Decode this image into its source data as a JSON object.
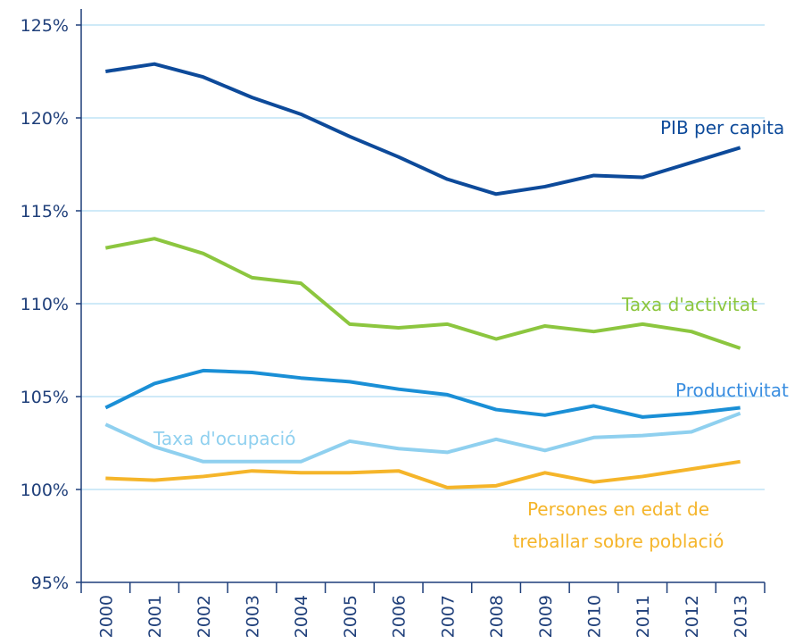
{
  "chart_data": {
    "type": "line",
    "categories": [
      "2000",
      "2001",
      "2002",
      "2003",
      "2004",
      "2005",
      "2006",
      "2007",
      "2008",
      "2009",
      "2010",
      "2011",
      "2012",
      "2013"
    ],
    "ylim": [
      95,
      125
    ],
    "yticks": [
      {
        "value": 95,
        "label": "95%"
      },
      {
        "value": 100,
        "label": "100%"
      },
      {
        "value": 105,
        "label": "105%"
      },
      {
        "value": 110,
        "label": "110%"
      },
      {
        "value": 115,
        "label": "115%"
      },
      {
        "value": 120,
        "label": "120%"
      },
      {
        "value": 125,
        "label": "125%"
      }
    ],
    "grid": true,
    "series": [
      {
        "name": "PIB per capita",
        "color": "#0d4a9a",
        "values": [
          122.5,
          122.9,
          122.2,
          121.1,
          120.2,
          119.0,
          117.9,
          116.7,
          115.9,
          116.3,
          116.9,
          116.8,
          117.6,
          118.4
        ]
      },
      {
        "name": "Taxa d'activitat",
        "color": "#8cc63f",
        "values": [
          113.0,
          113.5,
          112.7,
          111.4,
          111.1,
          108.9,
          108.7,
          108.9,
          108.1,
          108.8,
          108.5,
          108.9,
          108.5,
          107.6
        ]
      },
      {
        "name": "Productivitat",
        "color": "#1a8fd6",
        "values": [
          104.4,
          105.7,
          106.4,
          106.3,
          106.0,
          105.8,
          105.4,
          105.1,
          104.3,
          104.0,
          104.5,
          103.9,
          104.1,
          104.4
        ]
      },
      {
        "name": "Taxa d'ocupació",
        "color": "#8fd0ef",
        "values": [
          103.5,
          102.3,
          101.5,
          101.5,
          101.5,
          102.6,
          102.2,
          102.0,
          102.7,
          102.1,
          102.8,
          102.9,
          103.1,
          104.1
        ]
      },
      {
        "name": "Persones en edat de\ntreballar sobre població",
        "color": "#f5b52a",
        "values": [
          100.6,
          100.5,
          100.7,
          101.0,
          100.9,
          100.9,
          101.0,
          100.1,
          100.2,
          100.9,
          100.4,
          100.7,
          101.1,
          101.5
        ]
      }
    ]
  }
}
